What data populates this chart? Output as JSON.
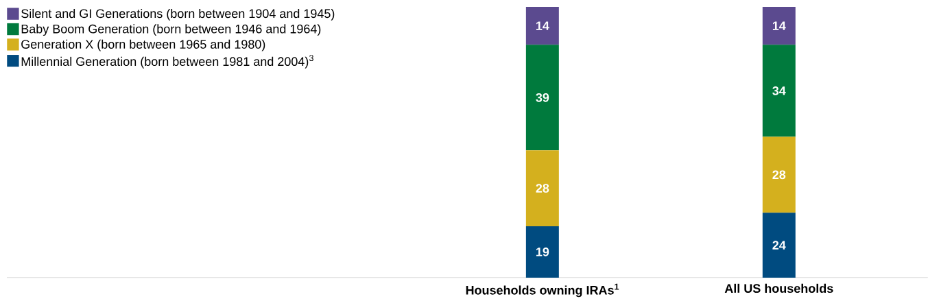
{
  "chart_data": {
    "type": "bar",
    "stacked": true,
    "data_labels": true,
    "legend": "top left",
    "categories": [
      "Households owning IRAs$^{1}$",
      "All US households"
    ],
    "series": [
      {
        "name": "Millennial Generation (born between 1981 and 2004)$^{3}$",
        "color": "#004b80",
        "values": [
          19,
          24
        ]
      },
      {
        "name": "Generation X (born between 1965 and 1980)",
        "color": "#d4b01e",
        "values": [
          28,
          28
        ]
      },
      {
        "name": "Baby Boom Generation (born between 1946 and 1964)",
        "color": "#007a3d",
        "values": [
          39,
          34
        ]
      },
      {
        "name": "Silent and GI Generations (born between 1904 and 1945)",
        "color": "#5b4a8f",
        "values": [
          14,
          14
        ]
      }
    ]
  }
}
